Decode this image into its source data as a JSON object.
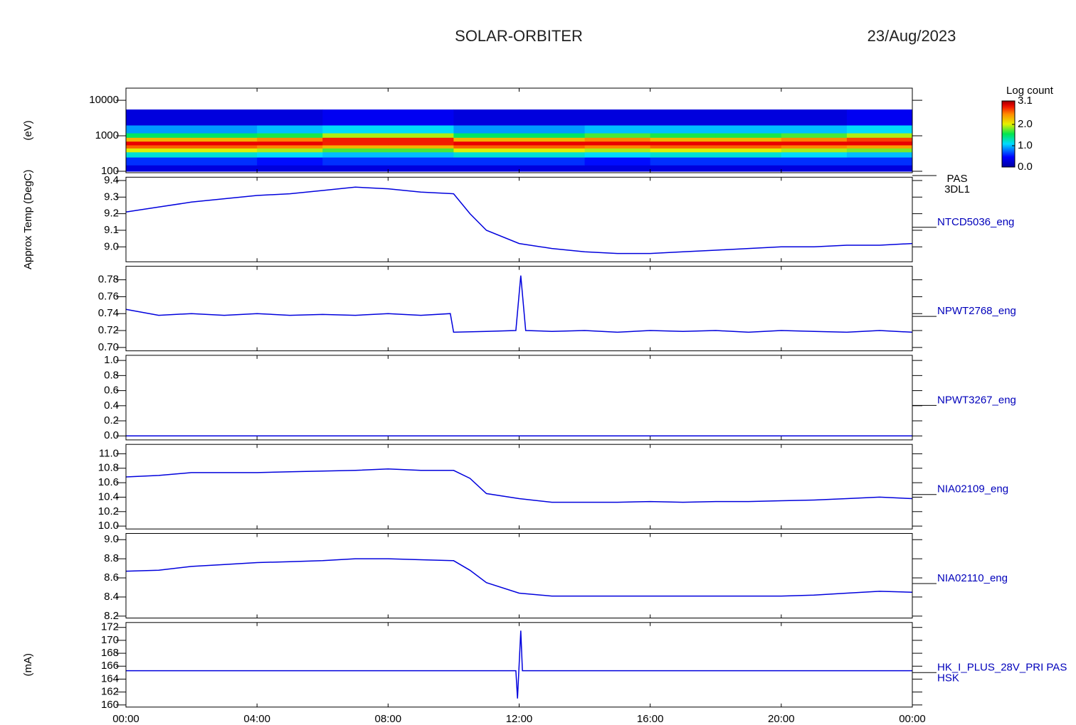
{
  "header": {
    "title": "SOLAR-ORBITER",
    "date": "23/Aug/2023"
  },
  "chart_data": [
    {
      "type": "heatmap",
      "ylabel": "(eV)",
      "label": [
        "PAS",
        "3DL1"
      ],
      "log_y": true,
      "colormap": "rainbow",
      "xlim": [
        0,
        24
      ],
      "ylim": [
        91,
        22000
      ],
      "yticks": [
        100,
        1000,
        10000
      ],
      "x_edges": [
        0,
        2,
        4,
        6,
        8,
        10,
        12,
        14,
        16,
        18,
        20,
        22,
        24
      ],
      "y_edges": [
        100,
        150,
        250,
        350,
        450,
        550,
        700,
        900,
        1200,
        2000,
        5500
      ],
      "z": [
        [
          0.3,
          0.3,
          0.3,
          0.3,
          0.3,
          0.3,
          0.3,
          0.3,
          0.3,
          0.3,
          0.3,
          0.3
        ],
        [
          0.6,
          0.6,
          0.5,
          0.6,
          0.6,
          0.6,
          0.6,
          0.5,
          0.6,
          0.6,
          0.6,
          0.6
        ],
        [
          1.2,
          1.2,
          1.1,
          1.0,
          1.0,
          1.2,
          1.2,
          1.1,
          1.2,
          1.2,
          1.1,
          1.0
        ],
        [
          2.0,
          2.0,
          1.9,
          1.7,
          1.7,
          2.0,
          2.0,
          1.9,
          2.0,
          2.0,
          1.9,
          1.8
        ],
        [
          2.6,
          2.6,
          2.5,
          2.3,
          2.3,
          2.6,
          2.6,
          2.5,
          2.6,
          2.6,
          2.5,
          2.4
        ],
        [
          2.9,
          2.9,
          2.9,
          2.8,
          2.8,
          2.9,
          2.9,
          2.9,
          2.9,
          2.9,
          2.9,
          2.9
        ],
        [
          2.3,
          2.3,
          2.5,
          2.8,
          2.8,
          2.3,
          2.3,
          2.5,
          2.3,
          2.3,
          2.5,
          2.7
        ],
        [
          1.5,
          1.5,
          1.6,
          1.9,
          1.9,
          1.5,
          1.5,
          1.7,
          1.6,
          1.6,
          1.7,
          1.9
        ],
        [
          0.9,
          0.9,
          1.0,
          1.1,
          1.1,
          0.9,
          0.9,
          1.0,
          1.0,
          1.0,
          1.0,
          1.1
        ],
        [
          0.3,
          0.3,
          0.3,
          0.4,
          0.4,
          0.3,
          0.3,
          0.3,
          0.3,
          0.3,
          0.3,
          0.4
        ]
      ],
      "zlabel": "Log count",
      "zlim": [
        0,
        3.1
      ],
      "zticks": [
        {
          "value": 0,
          "label": "0.0"
        },
        {
          "value": 1,
          "label": "1.0"
        },
        {
          "value": 2,
          "label": "2.0"
        },
        3.1
      ]
    },
    {
      "type": "line",
      "ylabel": "Approx Temp (DegC)",
      "label": [
        "NTCD5036_eng"
      ],
      "color": "#0000dd",
      "xlim": [
        0,
        24
      ],
      "ylim": [
        8.91,
        9.42
      ],
      "yticks": [
        {
          "value": 9,
          "label": "9.0"
        },
        9.1,
        9.2,
        9.3,
        9.4
      ],
      "x": [
        0,
        1,
        2,
        3,
        4,
        5,
        6,
        7,
        8,
        9,
        10,
        10.5,
        11,
        12,
        13,
        14,
        15,
        16,
        17,
        18,
        19,
        20,
        21,
        22,
        23,
        24
      ],
      "values": [
        9.21,
        9.24,
        9.27,
        9.29,
        9.31,
        9.32,
        9.34,
        9.36,
        9.35,
        9.33,
        9.32,
        9.2,
        9.1,
        9.02,
        8.99,
        8.97,
        8.96,
        8.96,
        8.97,
        8.98,
        8.99,
        9.0,
        9.0,
        9.01,
        9.01,
        9.02
      ]
    },
    {
      "type": "line",
      "label": [
        "NPWT2768_eng"
      ],
      "color": "#0000dd",
      "xlim": [
        0,
        24
      ],
      "ylim": [
        0.696,
        0.796
      ],
      "yticks": [
        {
          "value": 0.7,
          "label": "0.70"
        },
        0.72,
        0.74,
        0.76,
        0.78
      ],
      "x": [
        0,
        1,
        2,
        3,
        4,
        5,
        6,
        7,
        8,
        9,
        9.9,
        10.0,
        11,
        11.9,
        12.05,
        12.2,
        13,
        14,
        15,
        16,
        17,
        18,
        19,
        20,
        21,
        22,
        23,
        24
      ],
      "values": [
        0.745,
        0.738,
        0.74,
        0.738,
        0.74,
        0.738,
        0.739,
        0.738,
        0.74,
        0.738,
        0.74,
        0.718,
        0.719,
        0.72,
        0.785,
        0.72,
        0.719,
        0.72,
        0.718,
        0.72,
        0.719,
        0.72,
        0.718,
        0.72,
        0.719,
        0.718,
        0.72,
        0.718
      ]
    },
    {
      "type": "line",
      "label": [
        "NPWT3267_eng"
      ],
      "color": "#0000dd",
      "xlim": [
        0,
        24
      ],
      "ylim": [
        -0.053,
        1.068
      ],
      "yticks": [
        {
          "value": 0,
          "label": "0.0"
        },
        0.2,
        0.4,
        0.6,
        0.8,
        {
          "value": 1,
          "label": "1.0"
        }
      ],
      "x": [
        0,
        24
      ],
      "values": [
        0,
        0
      ]
    },
    {
      "type": "line",
      "label": [
        "NIA02109_eng"
      ],
      "color": "#0000dd",
      "xlim": [
        0,
        24
      ],
      "ylim": [
        9.96,
        11.13
      ],
      "yticks": [
        {
          "value": 10,
          "label": "10.0"
        },
        10.2,
        10.4,
        10.6,
        10.8,
        {
          "value": 11,
          "label": "11.0"
        }
      ],
      "x": [
        0,
        1,
        2,
        3,
        4,
        5,
        6,
        7,
        8,
        9,
        10,
        10.5,
        11,
        12,
        13,
        14,
        15,
        16,
        17,
        18,
        19,
        20,
        21,
        22,
        23,
        24
      ],
      "values": [
        10.68,
        10.7,
        10.74,
        10.74,
        10.74,
        10.75,
        10.76,
        10.77,
        10.79,
        10.77,
        10.77,
        10.66,
        10.45,
        10.38,
        10.33,
        10.33,
        10.33,
        10.34,
        10.33,
        10.34,
        10.34,
        10.35,
        10.36,
        10.38,
        10.4,
        10.38
      ]
    },
    {
      "type": "line",
      "label": [
        "NIA02110_eng"
      ],
      "color": "#0000dd",
      "xlim": [
        0,
        24
      ],
      "ylim": [
        8.18,
        9.065
      ],
      "yticks": [
        8.2,
        8.4,
        8.6,
        8.8,
        {
          "value": 9,
          "label": "9.0"
        }
      ],
      "x": [
        0,
        1,
        2,
        3,
        4,
        5,
        6,
        7,
        8,
        9,
        10,
        10.5,
        11,
        12,
        13,
        14,
        15,
        16,
        17,
        18,
        19,
        20,
        21,
        22,
        23,
        24
      ],
      "values": [
        8.67,
        8.68,
        8.72,
        8.74,
        8.76,
        8.77,
        8.78,
        8.8,
        8.8,
        8.79,
        8.78,
        8.68,
        8.55,
        8.44,
        8.41,
        8.41,
        8.41,
        8.41,
        8.41,
        8.41,
        8.41,
        8.41,
        8.42,
        8.44,
        8.46,
        8.45
      ]
    },
    {
      "type": "line",
      "ylabel": "(mA)",
      "label": [
        "HK_I_PLUS_28V_PRI PAS",
        "HSK"
      ],
      "color": "#0000dd",
      "xlim": [
        0,
        24
      ],
      "ylim": [
        159.67,
        172.76
      ],
      "yticks": [
        160,
        162,
        164,
        166,
        168,
        170,
        172
      ],
      "xticks": [
        {
          "value": 0,
          "label": "00:00"
        },
        {
          "value": 4,
          "label": "04:00"
        },
        {
          "value": 8,
          "label": "08:00"
        },
        {
          "value": 12,
          "label": "12:00"
        },
        {
          "value": 16,
          "label": "16:00"
        },
        {
          "value": 20,
          "label": "20:00"
        },
        {
          "value": 24,
          "label": "00:00"
        }
      ],
      "x": [
        0,
        4,
        8,
        11.9,
        11.95,
        12.05,
        12.1,
        16,
        20,
        24
      ],
      "values": [
        165.3,
        165.3,
        165.3,
        165.3,
        161,
        171.5,
        165.3,
        165.3,
        165.3,
        165.3
      ]
    }
  ]
}
